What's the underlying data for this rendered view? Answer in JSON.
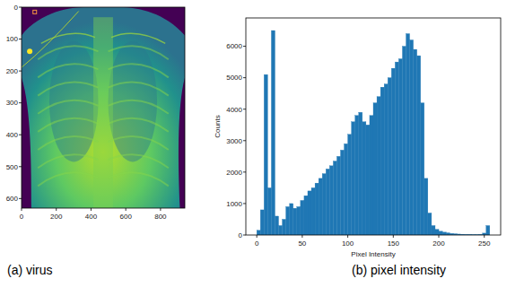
{
  "chart_data": [
    {
      "type": "image",
      "title": "(a) virus",
      "xlim": [
        0,
        940
      ],
      "ylim": [
        630,
        0
      ],
      "xticks": [
        0,
        200,
        400,
        600,
        800
      ],
      "yticks": [
        0,
        100,
        200,
        300,
        400,
        500,
        600
      ]
    },
    {
      "type": "histogram",
      "title": "(b) pixel intensity",
      "x_label": "Pixel Intensity",
      "y_label": "Counts",
      "color": "#1f77b4",
      "bins": [
        0,
        4,
        8,
        12,
        16,
        20,
        24,
        28,
        32,
        36,
        40,
        44,
        48,
        52,
        56,
        60,
        64,
        68,
        72,
        76,
        80,
        84,
        88,
        92,
        96,
        100,
        104,
        108,
        112,
        116,
        120,
        124,
        128,
        132,
        136,
        140,
        144,
        148,
        152,
        156,
        160,
        164,
        168,
        172,
        176,
        180,
        184,
        188,
        192,
        196,
        200,
        204,
        208,
        212,
        216,
        220,
        224,
        228,
        232,
        236,
        240,
        244,
        248,
        252,
        256
      ],
      "values": [
        150,
        800,
        5100,
        1500,
        6500,
        600,
        300,
        500,
        900,
        1000,
        850,
        900,
        1100,
        1250,
        1400,
        1500,
        1650,
        1800,
        1950,
        2100,
        2200,
        2350,
        2500,
        2700,
        2900,
        3200,
        3600,
        3800,
        3900,
        3600,
        3500,
        3800,
        4200,
        4400,
        4700,
        4800,
        5000,
        5300,
        5500,
        5600,
        6000,
        6400,
        6200,
        5900,
        5700,
        4200,
        1800,
        700,
        300,
        180,
        120,
        90,
        70,
        50,
        40,
        30,
        25,
        20,
        20,
        15,
        15,
        20,
        60,
        300
      ],
      "xlim": [
        -12,
        268
      ],
      "ylim": [
        0,
        6900
      ],
      "xticks": [
        0,
        50,
        100,
        150,
        200,
        250
      ],
      "yticks": [
        0,
        1000,
        2000,
        3000,
        4000,
        5000,
        6000
      ]
    }
  ]
}
